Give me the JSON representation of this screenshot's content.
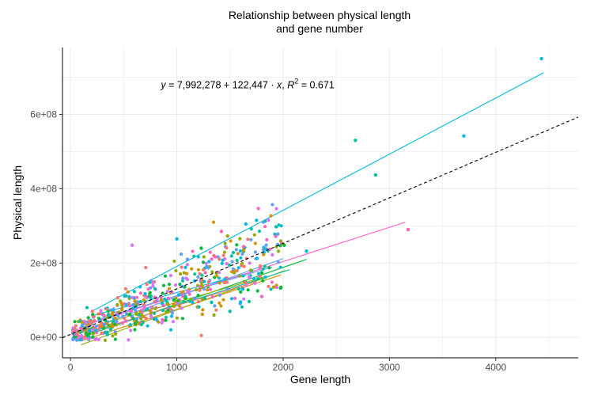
{
  "chart_data": {
    "type": "scatter",
    "title": [
      "Relationship between physical length",
      "and gene number"
    ],
    "xlabel": "Gene length",
    "ylabel": "Physical length",
    "xlim": [
      -75,
      4775
    ],
    "ylim": [
      -55000000,
      780000000
    ],
    "x_ticks": [
      0,
      1000,
      2000,
      3000,
      4000
    ],
    "x_tick_labels": [
      "0",
      "1000",
      "2000",
      "3000",
      "4000"
    ],
    "y_ticks": [
      0,
      200000000,
      400000000,
      600000000
    ],
    "y_tick_labels": [
      "0e+00",
      "2e+08",
      "4e+08",
      "6e+08"
    ],
    "grid": true,
    "annotation": {
      "y_text": "y",
      "eq_text": " = 7,992,278 + 122,447 · ",
      "x_text": "x",
      "sep_text": ",  ",
      "r_text": "R",
      "r_sup": "2",
      "r_val": " = 0.671",
      "pos": [
        850,
        670000000
      ]
    },
    "overall_fit": {
      "intercept": 7992278,
      "slope": 122447,
      "style": "dashed",
      "color": "#000000"
    },
    "palette": [
      "#F8766D",
      "#D39200",
      "#93AA00",
      "#00BA38",
      "#00C19F",
      "#00B9E3",
      "#619CFF",
      "#DB72FB",
      "#FF61C3"
    ],
    "group_fits": [
      {
        "color": "#00B9E3",
        "x": [
          200,
          4450
        ],
        "y": [
          70000000,
          712000000
        ]
      },
      {
        "color": "#FF61C3",
        "x": [
          200,
          3150
        ],
        "y": [
          38000000,
          310000000
        ]
      },
      {
        "color": "#00BA38",
        "x": [
          150,
          2220
        ],
        "y": [
          5000000,
          210000000
        ]
      },
      {
        "color": "#619CFF",
        "x": [
          160,
          2000
        ],
        "y": [
          22000000,
          212000000
        ]
      },
      {
        "color": "#93AA00",
        "x": [
          100,
          2020
        ],
        "y": [
          -20000000,
          180000000
        ]
      },
      {
        "color": "#D39200",
        "x": [
          120,
          1980
        ],
        "y": [
          -8000000,
          168000000
        ]
      },
      {
        "color": "#DB72FB",
        "x": [
          150,
          1700
        ],
        "y": [
          35000000,
          175000000
        ]
      },
      {
        "color": "#00C19F",
        "x": [
          170,
          2060
        ],
        "y": [
          12000000,
          182000000
        ]
      },
      {
        "color": "#F8766D",
        "x": [
          120,
          1750
        ],
        "y": [
          10000000,
          150000000
        ]
      },
      {
        "color": "#00B9E3",
        "x": [
          230,
          1500
        ],
        "y": [
          60000000,
          160000000
        ]
      },
      {
        "color": "#619CFF",
        "x": [
          260,
          1900
        ],
        "y": [
          48000000,
          190000000
        ]
      },
      {
        "color": "#93AA00",
        "x": [
          200,
          1850
        ],
        "y": [
          28000000,
          165000000
        ]
      }
    ],
    "highlight_points": [
      {
        "x": 4430,
        "y": 750000000,
        "color": "#00B9E3"
      },
      {
        "x": 3700,
        "y": 542000000,
        "color": "#00B9E3"
      },
      {
        "x": 2680,
        "y": 530000000,
        "color": "#00C19F"
      },
      {
        "x": 2870,
        "y": 437000000,
        "color": "#00C19F"
      },
      {
        "x": 3175,
        "y": 290000000,
        "color": "#FF61C3"
      },
      {
        "x": 2220,
        "y": 232000000,
        "color": "#00B9E3"
      },
      {
        "x": 1000,
        "y": 265000000,
        "color": "#00B9E3"
      },
      {
        "x": 580,
        "y": 248000000,
        "color": "#DB72FB"
      },
      {
        "x": 1420,
        "y": 285000000,
        "color": "#FF61C3"
      },
      {
        "x": 1650,
        "y": 305000000,
        "color": "#00B9E3"
      },
      {
        "x": 1700,
        "y": 292000000,
        "color": "#00C19F"
      },
      {
        "x": 1750,
        "y": 315000000,
        "color": "#00B9E3"
      },
      {
        "x": 1950,
        "y": 278000000,
        "color": "#619CFF"
      },
      {
        "x": 2010,
        "y": 248000000,
        "color": "#00BA38"
      },
      {
        "x": 1500,
        "y": 70000000,
        "color": "#00C19F"
      },
      {
        "x": 1620,
        "y": 130000000,
        "color": "#00B9E3"
      },
      {
        "x": 1800,
        "y": 110000000,
        "color": "#FF61C3"
      },
      {
        "x": 1350,
        "y": 60000000,
        "color": "#93AA00"
      },
      {
        "x": 1240,
        "y": 62000000,
        "color": "#D39200"
      },
      {
        "x": 1980,
        "y": 135000000,
        "color": "#00BA38"
      },
      {
        "x": 1600,
        "y": 95000000,
        "color": "#00B9E3"
      },
      {
        "x": 1230,
        "y": 240000000,
        "color": "#00BA38"
      },
      {
        "x": 1470,
        "y": 198000000,
        "color": "#DB72FB"
      },
      {
        "x": 1100,
        "y": 210000000,
        "color": "#619CFF"
      }
    ],
    "cluster": {
      "n": 620,
      "x_range": [
        20,
        1990
      ],
      "x_skew": 1.35,
      "intercept": 5000000,
      "slope": 112000,
      "spread": 38000000,
      "seed": 42
    }
  }
}
